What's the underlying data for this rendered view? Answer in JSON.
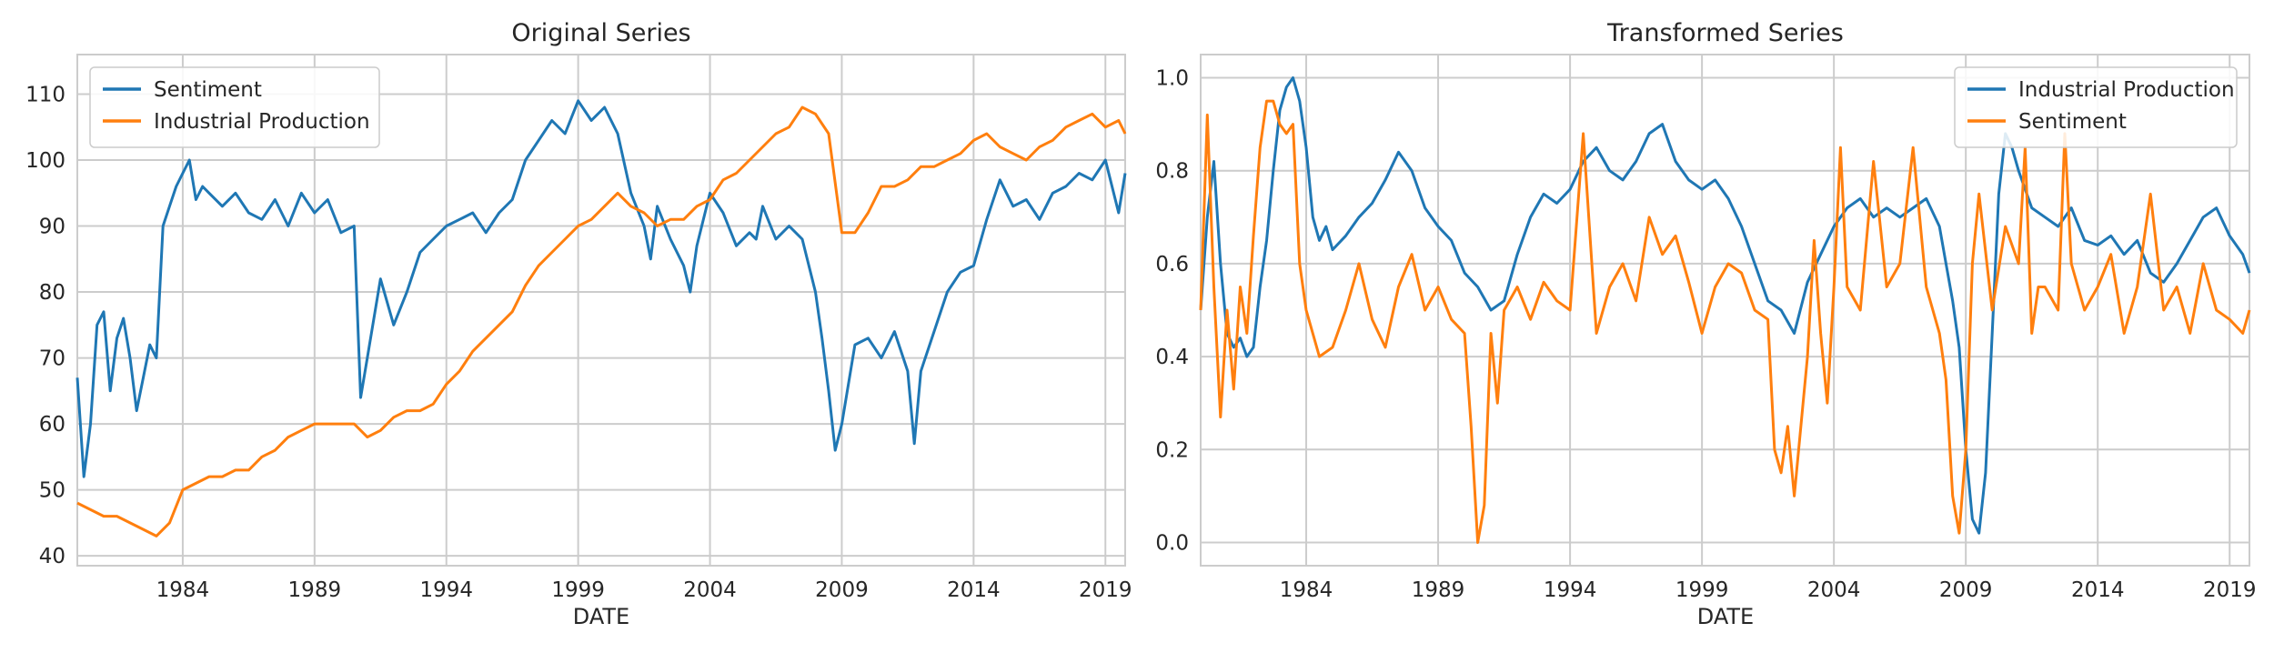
{
  "chart_data": [
    {
      "type": "line",
      "title": "Original Series",
      "xlabel": "DATE",
      "ylabel": "",
      "x_ticks": [
        "1984",
        "1989",
        "1994",
        "1999",
        "2004",
        "2009",
        "2014",
        "2019"
      ],
      "y_ticks": [
        "40",
        "50",
        "60",
        "70",
        "80",
        "90",
        "100",
        "110"
      ],
      "xlim": [
        1980.0,
        2019.75
      ],
      "ylim": [
        38.5,
        116
      ],
      "grid": true,
      "legend": "top-left",
      "series": [
        {
          "name": "Sentiment",
          "color": "#1f77b4",
          "x": [
            1980.0,
            1980.25,
            1980.5,
            1980.75,
            1981.0,
            1981.25,
            1981.5,
            1981.75,
            1982.0,
            1982.25,
            1982.5,
            1982.75,
            1983.0,
            1983.25,
            1983.5,
            1983.75,
            1984.0,
            1984.25,
            1984.5,
            1984.75,
            1985.0,
            1985.5,
            1986.0,
            1986.5,
            1987.0,
            1987.5,
            1988.0,
            1988.5,
            1989.0,
            1989.5,
            1990.0,
            1990.5,
            1990.75,
            1991.0,
            1991.5,
            1992.0,
            1992.5,
            1993.0,
            1993.5,
            1994.0,
            1994.5,
            1995.0,
            1995.5,
            1996.0,
            1996.5,
            1997.0,
            1997.5,
            1998.0,
            1998.5,
            1999.0,
            1999.5,
            2000.0,
            2000.5,
            2001.0,
            2001.5,
            2001.75,
            2002.0,
            2002.5,
            2003.0,
            2003.25,
            2003.5,
            2004.0,
            2004.5,
            2005.0,
            2005.5,
            2005.75,
            2006.0,
            2006.5,
            2007.0,
            2007.5,
            2008.0,
            2008.25,
            2008.5,
            2008.75,
            2009.0,
            2009.5,
            2010.0,
            2010.5,
            2011.0,
            2011.5,
            2011.75,
            2012.0,
            2012.5,
            2013.0,
            2013.5,
            2014.0,
            2014.5,
            2015.0,
            2015.5,
            2016.0,
            2016.5,
            2017.0,
            2017.5,
            2018.0,
            2018.5,
            2019.0,
            2019.5,
            2019.75
          ],
          "y": [
            67,
            52,
            60,
            75,
            77,
            65,
            73,
            76,
            70,
            62,
            67,
            72,
            70,
            90,
            93,
            96,
            98,
            100,
            94,
            96,
            95,
            93,
            95,
            92,
            91,
            94,
            90,
            95,
            92,
            94,
            89,
            90,
            64,
            70,
            82,
            75,
            80,
            86,
            88,
            90,
            91,
            92,
            89,
            92,
            94,
            100,
            103,
            106,
            104,
            109,
            106,
            108,
            104,
            95,
            90,
            85,
            93,
            88,
            84,
            80,
            87,
            95,
            92,
            87,
            89,
            88,
            93,
            88,
            90,
            88,
            80,
            73,
            65,
            56,
            60,
            72,
            73,
            70,
            74,
            68,
            57,
            68,
            74,
            80,
            83,
            84,
            91,
            97,
            93,
            94,
            91,
            95,
            96,
            98,
            97,
            100,
            92,
            98
          ]
        },
        {
          "name": "Industrial Production",
          "color": "#ff7f0e",
          "x": [
            1980.0,
            1980.5,
            1981.0,
            1981.5,
            1982.0,
            1982.5,
            1983.0,
            1983.5,
            1984.0,
            1984.5,
            1985.0,
            1985.5,
            1986.0,
            1986.5,
            1987.0,
            1987.5,
            1988.0,
            1988.5,
            1989.0,
            1989.5,
            1990.0,
            1990.5,
            1991.0,
            1991.5,
            1992.0,
            1992.5,
            1993.0,
            1993.5,
            1994.0,
            1994.5,
            1995.0,
            1995.5,
            1996.0,
            1996.5,
            1997.0,
            1997.5,
            1998.0,
            1998.5,
            1999.0,
            1999.5,
            2000.0,
            2000.5,
            2001.0,
            2001.5,
            2002.0,
            2002.5,
            2003.0,
            2003.5,
            2004.0,
            2004.5,
            2005.0,
            2005.5,
            2006.0,
            2006.5,
            2007.0,
            2007.5,
            2008.0,
            2008.5,
            2009.0,
            2009.5,
            2010.0,
            2010.5,
            2011.0,
            2011.5,
            2012.0,
            2012.5,
            2013.0,
            2013.5,
            2014.0,
            2014.5,
            2015.0,
            2015.5,
            2016.0,
            2016.5,
            2017.0,
            2017.5,
            2018.0,
            2018.5,
            2019.0,
            2019.5,
            2019.75
          ],
          "y": [
            48,
            47,
            46,
            46,
            45,
            44,
            43,
            45,
            50,
            51,
            52,
            52,
            53,
            53,
            55,
            56,
            58,
            59,
            60,
            60,
            60,
            60,
            58,
            59,
            61,
            62,
            62,
            63,
            66,
            68,
            71,
            73,
            75,
            77,
            81,
            84,
            86,
            88,
            90,
            91,
            93,
            95,
            93,
            92,
            90,
            91,
            91,
            93,
            94,
            97,
            98,
            100,
            102,
            104,
            105,
            108,
            107,
            104,
            89,
            89,
            92,
            96,
            96,
            97,
            99,
            99,
            100,
            101,
            103,
            104,
            102,
            101,
            100,
            102,
            103,
            105,
            106,
            107,
            105,
            106,
            104
          ]
        }
      ]
    },
    {
      "type": "line",
      "title": "Transformed Series",
      "xlabel": "DATE",
      "ylabel": "",
      "x_ticks": [
        "1984",
        "1989",
        "1994",
        "1999",
        "2004",
        "2009",
        "2014",
        "2019"
      ],
      "y_ticks": [
        "0.0",
        "0.2",
        "0.4",
        "0.6",
        "0.8",
        "1.0"
      ],
      "xlim": [
        1980.0,
        2019.75
      ],
      "ylim": [
        -0.05,
        1.05
      ],
      "grid": true,
      "legend": "top-right",
      "series": [
        {
          "name": "Industrial Production",
          "color": "#1f77b4",
          "x": [
            1980.0,
            1980.25,
            1980.5,
            1980.75,
            1981.0,
            1981.25,
            1981.5,
            1981.75,
            1982.0,
            1982.25,
            1982.5,
            1982.75,
            1983.0,
            1983.25,
            1983.5,
            1983.75,
            1984.0,
            1984.25,
            1984.5,
            1984.75,
            1985.0,
            1985.5,
            1986.0,
            1986.5,
            1987.0,
            1987.5,
            1988.0,
            1988.5,
            1989.0,
            1989.5,
            1990.0,
            1990.5,
            1991.0,
            1991.5,
            1992.0,
            1992.5,
            1993.0,
            1993.5,
            1994.0,
            1994.5,
            1995.0,
            1995.5,
            1996.0,
            1996.5,
            1997.0,
            1997.5,
            1998.0,
            1998.5,
            1999.0,
            1999.5,
            2000.0,
            2000.5,
            2001.0,
            2001.5,
            2002.0,
            2002.5,
            2003.0,
            2003.5,
            2004.0,
            2004.5,
            2005.0,
            2005.5,
            2006.0,
            2006.5,
            2007.0,
            2007.5,
            2008.0,
            2008.25,
            2008.5,
            2008.75,
            2009.0,
            2009.25,
            2009.5,
            2009.75,
            2010.0,
            2010.25,
            2010.5,
            2010.75,
            2011.0,
            2011.5,
            2012.0,
            2012.5,
            2013.0,
            2013.5,
            2014.0,
            2014.5,
            2015.0,
            2015.5,
            2016.0,
            2016.5,
            2017.0,
            2017.5,
            2018.0,
            2018.5,
            2019.0,
            2019.5,
            2019.75
          ],
          "y": [
            0.5,
            0.7,
            0.82,
            0.6,
            0.45,
            0.42,
            0.44,
            0.4,
            0.42,
            0.55,
            0.65,
            0.8,
            0.93,
            0.98,
            1.0,
            0.95,
            0.85,
            0.7,
            0.65,
            0.68,
            0.63,
            0.66,
            0.7,
            0.73,
            0.78,
            0.84,
            0.8,
            0.72,
            0.68,
            0.65,
            0.58,
            0.55,
            0.5,
            0.52,
            0.62,
            0.7,
            0.75,
            0.73,
            0.76,
            0.82,
            0.85,
            0.8,
            0.78,
            0.82,
            0.88,
            0.9,
            0.82,
            0.78,
            0.76,
            0.78,
            0.74,
            0.68,
            0.6,
            0.52,
            0.5,
            0.45,
            0.56,
            0.62,
            0.68,
            0.72,
            0.74,
            0.7,
            0.72,
            0.7,
            0.72,
            0.74,
            0.68,
            0.6,
            0.52,
            0.42,
            0.2,
            0.05,
            0.02,
            0.15,
            0.45,
            0.75,
            0.88,
            0.85,
            0.8,
            0.72,
            0.7,
            0.68,
            0.72,
            0.65,
            0.64,
            0.66,
            0.62,
            0.65,
            0.58,
            0.56,
            0.6,
            0.65,
            0.7,
            0.72,
            0.66,
            0.62,
            0.58
          ]
        },
        {
          "name": "Sentiment",
          "color": "#ff7f0e",
          "x": [
            1980.0,
            1980.25,
            1980.5,
            1980.75,
            1981.0,
            1981.25,
            1981.5,
            1981.75,
            1982.0,
            1982.25,
            1982.5,
            1982.75,
            1983.0,
            1983.25,
            1983.5,
            1983.75,
            1984.0,
            1984.5,
            1985.0,
            1985.5,
            1986.0,
            1986.5,
            1987.0,
            1987.5,
            1988.0,
            1988.5,
            1989.0,
            1989.5,
            1990.0,
            1990.25,
            1990.5,
            1990.75,
            1991.0,
            1991.25,
            1991.5,
            1992.0,
            1992.5,
            1993.0,
            1993.5,
            1994.0,
            1994.5,
            1995.0,
            1995.5,
            1996.0,
            1996.5,
            1997.0,
            1997.5,
            1998.0,
            1998.5,
            1999.0,
            1999.5,
            2000.0,
            2000.5,
            2001.0,
            2001.5,
            2001.75,
            2002.0,
            2002.25,
            2002.5,
            2003.0,
            2003.25,
            2003.5,
            2003.75,
            2004.0,
            2004.25,
            2004.5,
            2005.0,
            2005.5,
            2006.0,
            2006.5,
            2007.0,
            2007.5,
            2008.0,
            2008.25,
            2008.5,
            2008.75,
            2009.0,
            2009.25,
            2009.5,
            2010.0,
            2010.5,
            2011.0,
            2011.25,
            2011.5,
            2011.75,
            2012.0,
            2012.5,
            2012.75,
            2013.0,
            2013.5,
            2014.0,
            2014.5,
            2015.0,
            2015.5,
            2016.0,
            2016.5,
            2017.0,
            2017.5,
            2018.0,
            2018.5,
            2019.0,
            2019.5,
            2019.75
          ],
          "y": [
            0.5,
            0.92,
            0.55,
            0.27,
            0.5,
            0.33,
            0.55,
            0.45,
            0.66,
            0.85,
            0.95,
            0.95,
            0.9,
            0.88,
            0.9,
            0.6,
            0.5,
            0.4,
            0.42,
            0.5,
            0.6,
            0.48,
            0.42,
            0.55,
            0.62,
            0.5,
            0.55,
            0.48,
            0.45,
            0.25,
            0.0,
            0.08,
            0.45,
            0.3,
            0.5,
            0.55,
            0.48,
            0.56,
            0.52,
            0.5,
            0.88,
            0.45,
            0.55,
            0.6,
            0.52,
            0.7,
            0.62,
            0.66,
            0.56,
            0.45,
            0.55,
            0.6,
            0.58,
            0.5,
            0.48,
            0.2,
            0.15,
            0.25,
            0.1,
            0.4,
            0.65,
            0.45,
            0.3,
            0.55,
            0.85,
            0.55,
            0.5,
            0.82,
            0.55,
            0.6,
            0.85,
            0.55,
            0.45,
            0.35,
            0.1,
            0.02,
            0.2,
            0.6,
            0.75,
            0.5,
            0.68,
            0.6,
            0.85,
            0.45,
            0.55,
            0.55,
            0.5,
            0.88,
            0.6,
            0.5,
            0.55,
            0.62,
            0.45,
            0.55,
            0.75,
            0.5,
            0.55,
            0.45,
            0.6,
            0.5,
            0.48,
            0.45,
            0.5
          ]
        }
      ]
    }
  ]
}
